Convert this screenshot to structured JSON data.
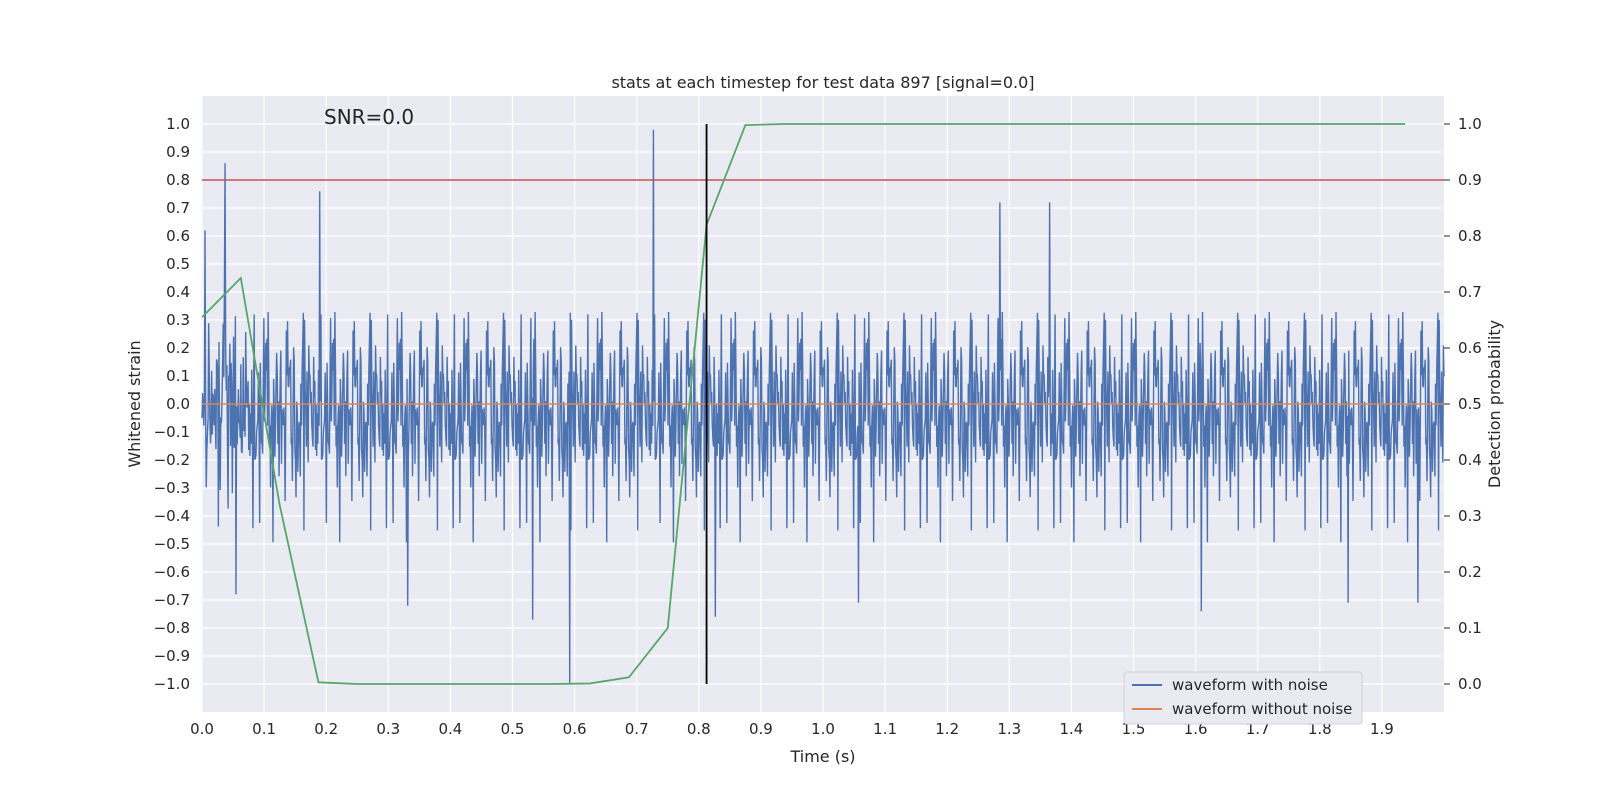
{
  "chart_data": {
    "type": "line",
    "title": "stats at each timestep for test data 897 [signal=0.0]",
    "xlabel": "Time (s)",
    "ylabel": "Whitened strain",
    "y2label": "Detection probability",
    "annotation": "SNR=0.0",
    "xlim": [
      0.0,
      2.0
    ],
    "ylim": [
      -1.1,
      1.1
    ],
    "y2lim": [
      -0.05,
      1.05
    ],
    "x_ticks": [
      "0.0",
      "0.1",
      "0.2",
      "0.3",
      "0.4",
      "0.5",
      "0.6",
      "0.7",
      "0.8",
      "0.9",
      "1.0",
      "1.1",
      "1.2",
      "1.3",
      "1.4",
      "1.5",
      "1.6",
      "1.7",
      "1.8",
      "1.9"
    ],
    "y_ticks": [
      "1.0",
      "0.9",
      "0.8",
      "0.7",
      "0.6",
      "0.5",
      "0.4",
      "0.3",
      "0.2",
      "0.1",
      "0.0",
      "−0.1",
      "−0.2",
      "−0.3",
      "−0.4",
      "−0.5",
      "−0.6",
      "−0.7",
      "−0.8",
      "−0.9",
      "−1.0"
    ],
    "y2_ticks": [
      "1.0",
      "0.9",
      "0.8",
      "0.7",
      "0.6",
      "0.5",
      "0.4",
      "0.3",
      "0.2",
      "0.1",
      "0.0"
    ],
    "legend_position": "lower-right",
    "grid": true,
    "series": [
      {
        "name": "waveform with noise",
        "color": "#4c72b0",
        "axis": "left",
        "description_samples": 2048,
        "x_range": [
          0.0,
          2.0
        ],
        "amplitude_typical": 0.25,
        "spikes": [
          {
            "x": 0.037,
            "y": 0.86
          },
          {
            "x": 0.727,
            "y": 0.98
          },
          {
            "x": 0.592,
            "y": -1.0
          },
          {
            "x": 0.19,
            "y": 0.76
          },
          {
            "x": 0.055,
            "y": -0.68
          },
          {
            "x": 0.532,
            "y": -0.77
          },
          {
            "x": 1.285,
            "y": 0.72
          },
          {
            "x": 1.365,
            "y": 0.72
          },
          {
            "x": 1.846,
            "y": -0.71
          },
          {
            "x": 1.958,
            "y": -0.71
          },
          {
            "x": 1.609,
            "y": -0.74
          },
          {
            "x": 0.827,
            "y": -0.76
          },
          {
            "x": 0.331,
            "y": -0.72
          },
          {
            "x": 1.057,
            "y": -0.71
          }
        ]
      },
      {
        "name": "waveform without noise",
        "color": "#dd8452",
        "axis": "left",
        "x": [
          0.0,
          2.0
        ],
        "y": [
          0.0,
          0.0
        ]
      },
      {
        "name": "",
        "color": "#55a868",
        "axis": "right",
        "x": [
          0.0,
          0.0625,
          0.125,
          0.1875,
          0.25,
          0.3125,
          0.375,
          0.4375,
          0.5,
          0.5625,
          0.625,
          0.6875,
          0.75,
          0.8125,
          0.875,
          0.9375,
          1.0,
          1.9375
        ],
        "y": [
          0.655,
          0.725,
          0.32,
          0.003,
          0.0,
          0.0,
          0.0,
          0.0,
          0.0,
          0.0,
          0.001,
          0.012,
          0.1,
          0.82,
          0.998,
          1.0,
          1.0,
          1.0
        ]
      }
    ],
    "threshold_line": {
      "axis": "right",
      "y": 0.9,
      "color": "#c44e52"
    },
    "vertical_line": {
      "x": 0.8125,
      "color": "#000000"
    }
  }
}
